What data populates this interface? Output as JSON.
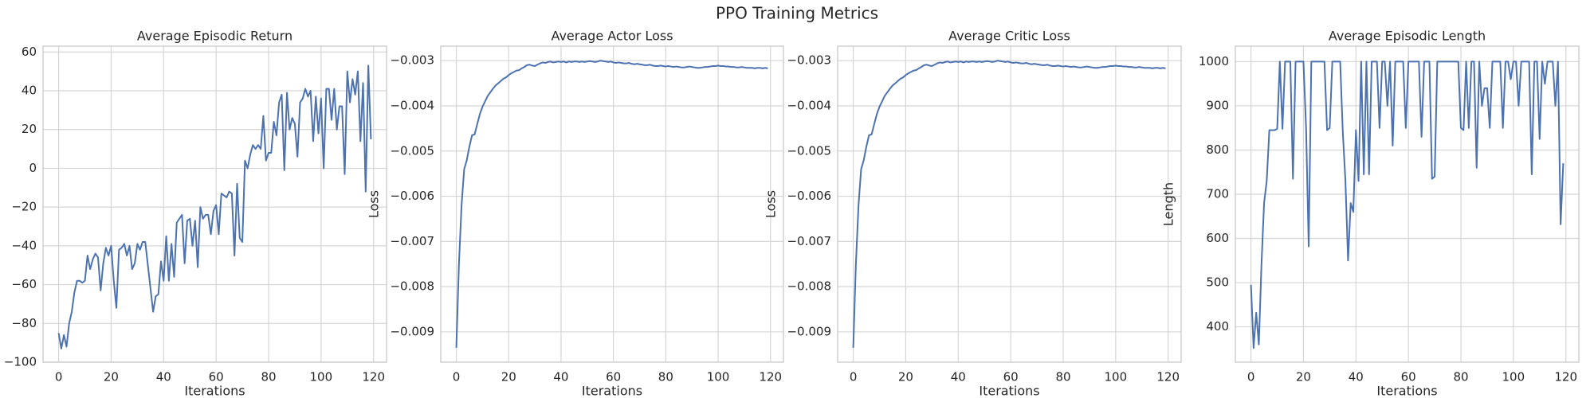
{
  "title": "PPO Training Metrics",
  "chart_data": [
    {
      "type": "line",
      "title": "Average Episodic Return",
      "xlabel": "Iterations",
      "color": "#4c72b0",
      "grid": true,
      "x": [
        0,
        1,
        2,
        3,
        4,
        5,
        6,
        7,
        8,
        9,
        10,
        11,
        12,
        13,
        14,
        15,
        16,
        17,
        18,
        19,
        20,
        21,
        22,
        23,
        24,
        25,
        26,
        27,
        28,
        29,
        30,
        31,
        32,
        33,
        34,
        35,
        36,
        37,
        38,
        39,
        40,
        41,
        42,
        43,
        44,
        45,
        46,
        47,
        48,
        49,
        50,
        51,
        52,
        53,
        54,
        55,
        56,
        57,
        58,
        59,
        60,
        61,
        62,
        63,
        64,
        65,
        66,
        67,
        68,
        69,
        70,
        71,
        72,
        73,
        74,
        75,
        76,
        77,
        78,
        79,
        80,
        81,
        82,
        83,
        84,
        85,
        86,
        87,
        88,
        89,
        90,
        91,
        92,
        93,
        94,
        95,
        96,
        97,
        98,
        99,
        100,
        101,
        102,
        103,
        104,
        105,
        106,
        107,
        108,
        109,
        110,
        111,
        112,
        113,
        114,
        115,
        116,
        117,
        118,
        119
      ],
      "values": [
        -85,
        -93,
        -86,
        -92,
        -80,
        -74,
        -64,
        -58,
        -58,
        -59,
        -58,
        -45,
        -52,
        -47,
        -44,
        -46,
        -63,
        -49,
        -41,
        -45,
        -40,
        -58,
        -72,
        -42,
        -41,
        -39,
        -45,
        -40,
        -52,
        -49,
        -39,
        -42,
        -38,
        -38,
        -50,
        -62,
        -74,
        -66,
        -65,
        -48,
        -58,
        -35,
        -58,
        -39,
        -56,
        -28,
        -26,
        -24,
        -49,
        -27,
        -26,
        -40,
        -27,
        -51,
        -20,
        -26,
        -24,
        -24,
        -34,
        -22,
        -19,
        -34,
        -13,
        -14,
        -15,
        -12,
        -13,
        -45,
        -8,
        -36,
        -38,
        4,
        0,
        7,
        12,
        10,
        12,
        10,
        27,
        4,
        8,
        8,
        24,
        17,
        34,
        38,
        -1,
        39,
        20,
        26,
        23,
        6,
        34,
        36,
        41,
        37,
        40,
        14,
        37,
        18,
        36,
        0,
        41,
        41,
        25,
        41,
        20,
        32,
        32,
        -3,
        50,
        34,
        46,
        38,
        50,
        14,
        44,
        -12,
        53,
        15
      ],
      "xlim": [
        -5.95,
        124.95
      ],
      "xticks": [
        0,
        20,
        40,
        60,
        80,
        100,
        120
      ],
      "ylim": [
        -100,
        63
      ],
      "yticks": [
        {
          "value": -100,
          "label": "−100"
        },
        {
          "value": -80,
          "label": "−80"
        },
        {
          "value": -60,
          "label": "−60"
        },
        {
          "value": -40,
          "label": "−40"
        },
        {
          "value": -20,
          "label": "−20"
        },
        0,
        20,
        40,
        60
      ]
    },
    {
      "type": "line",
      "title": "Average Actor Loss",
      "xlabel": "Iterations",
      "ylabel": "Loss",
      "color": "#4c72b0",
      "grid": true,
      "x": [
        0,
        1,
        2,
        3,
        4,
        5,
        6,
        7,
        8,
        9,
        10,
        11,
        12,
        13,
        14,
        15,
        16,
        17,
        18,
        19,
        20,
        21,
        22,
        23,
        24,
        25,
        26,
        27,
        28,
        29,
        30,
        31,
        32,
        33,
        34,
        35,
        36,
        37,
        38,
        39,
        40,
        41,
        42,
        43,
        44,
        45,
        46,
        47,
        48,
        49,
        50,
        51,
        52,
        53,
        54,
        55,
        56,
        57,
        58,
        59,
        60,
        61,
        62,
        63,
        64,
        65,
        66,
        67,
        68,
        69,
        70,
        71,
        72,
        73,
        74,
        75,
        76,
        77,
        78,
        79,
        80,
        81,
        82,
        83,
        84,
        85,
        86,
        87,
        88,
        89,
        90,
        91,
        92,
        93,
        94,
        95,
        96,
        97,
        98,
        99,
        100,
        101,
        102,
        103,
        104,
        105,
        106,
        107,
        108,
        109,
        110,
        111,
        112,
        113,
        114,
        115,
        116,
        117,
        118,
        119
      ],
      "values": [
        -0.00935,
        -0.0075,
        -0.0062,
        -0.0054,
        -0.0052,
        -0.0049,
        -0.00465,
        -0.00463,
        -0.0044,
        -0.00418,
        -0.00402,
        -0.0039,
        -0.00378,
        -0.0037,
        -0.00362,
        -0.00355,
        -0.0035,
        -0.00345,
        -0.0034,
        -0.00337,
        -0.00332,
        -0.00328,
        -0.00325,
        -0.00322,
        -0.00321,
        -0.00317,
        -0.00314,
        -0.0031,
        -0.00309,
        -0.00311,
        -0.00312,
        -0.00309,
        -0.00306,
        -0.00304,
        -0.00305,
        -0.00303,
        -0.00302,
        -0.00304,
        -0.00303,
        -0.00302,
        -0.00303,
        -0.00302,
        -0.00304,
        -0.00302,
        -0.00303,
        -0.00302,
        -0.00302,
        -0.00303,
        -0.00302,
        -0.00303,
        -0.00302,
        -0.00301,
        -0.00302,
        -0.00303,
        -0.00302,
        -0.003,
        -0.00301,
        -0.00302,
        -0.00303,
        -0.00302,
        -0.00304,
        -0.00305,
        -0.00304,
        -0.00305,
        -0.00306,
        -0.00306,
        -0.00305,
        -0.00307,
        -0.00308,
        -0.00307,
        -0.00308,
        -0.00309,
        -0.0031,
        -0.0031,
        -0.00309,
        -0.00311,
        -0.00312,
        -0.00312,
        -0.00311,
        -0.00312,
        -0.00313,
        -0.00312,
        -0.00313,
        -0.00314,
        -0.00313,
        -0.00314,
        -0.00315,
        -0.00315,
        -0.00314,
        -0.00313,
        -0.00314,
        -0.00315,
        -0.00316,
        -0.00316,
        -0.00315,
        -0.00314,
        -0.00314,
        -0.00313,
        -0.00312,
        -0.00312,
        -0.00311,
        -0.00312,
        -0.00312,
        -0.00313,
        -0.00313,
        -0.00314,
        -0.00314,
        -0.00315,
        -0.00315,
        -0.00314,
        -0.00315,
        -0.00316,
        -0.00316,
        -0.00316,
        -0.00317,
        -0.00316,
        -0.00316,
        -0.00317,
        -0.00316,
        -0.00317
      ],
      "xlim": [
        -5.95,
        124.95
      ],
      "xticks": [
        0,
        20,
        40,
        60,
        80,
        100,
        120
      ],
      "ylim": [
        -0.00967,
        -0.00268
      ],
      "yticks": [
        {
          "value": -0.009,
          "label": "−0.009"
        },
        {
          "value": -0.008,
          "label": "−0.008"
        },
        {
          "value": -0.007,
          "label": "−0.007"
        },
        {
          "value": -0.006,
          "label": "−0.006"
        },
        {
          "value": -0.005,
          "label": "−0.005"
        },
        {
          "value": -0.004,
          "label": "−0.004"
        },
        {
          "value": -0.003,
          "label": "−0.003"
        }
      ]
    },
    {
      "type": "line",
      "title": "Average Critic Loss",
      "xlabel": "Iterations",
      "ylabel": "Loss",
      "color": "#4c72b0",
      "grid": true,
      "x": [
        0,
        1,
        2,
        3,
        4,
        5,
        6,
        7,
        8,
        9,
        10,
        11,
        12,
        13,
        14,
        15,
        16,
        17,
        18,
        19,
        20,
        21,
        22,
        23,
        24,
        25,
        26,
        27,
        28,
        29,
        30,
        31,
        32,
        33,
        34,
        35,
        36,
        37,
        38,
        39,
        40,
        41,
        42,
        43,
        44,
        45,
        46,
        47,
        48,
        49,
        50,
        51,
        52,
        53,
        54,
        55,
        56,
        57,
        58,
        59,
        60,
        61,
        62,
        63,
        64,
        65,
        66,
        67,
        68,
        69,
        70,
        71,
        72,
        73,
        74,
        75,
        76,
        77,
        78,
        79,
        80,
        81,
        82,
        83,
        84,
        85,
        86,
        87,
        88,
        89,
        90,
        91,
        92,
        93,
        94,
        95,
        96,
        97,
        98,
        99,
        100,
        101,
        102,
        103,
        104,
        105,
        106,
        107,
        108,
        109,
        110,
        111,
        112,
        113,
        114,
        115,
        116,
        117,
        118,
        119
      ],
      "values": [
        -0.00935,
        -0.0075,
        -0.0062,
        -0.0054,
        -0.0052,
        -0.0049,
        -0.00465,
        -0.00463,
        -0.0044,
        -0.00418,
        -0.00402,
        -0.0039,
        -0.00378,
        -0.0037,
        -0.00362,
        -0.00355,
        -0.0035,
        -0.00345,
        -0.0034,
        -0.00337,
        -0.00332,
        -0.00328,
        -0.00325,
        -0.00322,
        -0.00321,
        -0.00317,
        -0.00314,
        -0.0031,
        -0.00309,
        -0.00311,
        -0.00312,
        -0.00309,
        -0.00306,
        -0.00304,
        -0.00305,
        -0.00303,
        -0.00302,
        -0.00304,
        -0.00303,
        -0.00302,
        -0.00303,
        -0.00302,
        -0.00304,
        -0.00302,
        -0.00303,
        -0.00302,
        -0.00302,
        -0.00303,
        -0.00302,
        -0.00303,
        -0.00302,
        -0.00301,
        -0.00302,
        -0.00303,
        -0.00302,
        -0.003,
        -0.00301,
        -0.00302,
        -0.00303,
        -0.00302,
        -0.00304,
        -0.00305,
        -0.00304,
        -0.00305,
        -0.00306,
        -0.00306,
        -0.00305,
        -0.00307,
        -0.00308,
        -0.00307,
        -0.00308,
        -0.00309,
        -0.0031,
        -0.0031,
        -0.00309,
        -0.00311,
        -0.00312,
        -0.00312,
        -0.00311,
        -0.00312,
        -0.00313,
        -0.00312,
        -0.00313,
        -0.00314,
        -0.00313,
        -0.00314,
        -0.00315,
        -0.00315,
        -0.00314,
        -0.00313,
        -0.00314,
        -0.00315,
        -0.00316,
        -0.00316,
        -0.00315,
        -0.00314,
        -0.00314,
        -0.00313,
        -0.00312,
        -0.00312,
        -0.00311,
        -0.00312,
        -0.00312,
        -0.00313,
        -0.00313,
        -0.00314,
        -0.00314,
        -0.00315,
        -0.00315,
        -0.00314,
        -0.00315,
        -0.00316,
        -0.00316,
        -0.00316,
        -0.00317,
        -0.00316,
        -0.00316,
        -0.00317,
        -0.00316,
        -0.00317
      ],
      "xlim": [
        -5.95,
        124.95
      ],
      "xticks": [
        0,
        20,
        40,
        60,
        80,
        100,
        120
      ],
      "ylim": [
        -0.00967,
        -0.00268
      ],
      "yticks": [
        {
          "value": -0.009,
          "label": "−0.009"
        },
        {
          "value": -0.008,
          "label": "−0.008"
        },
        {
          "value": -0.007,
          "label": "−0.007"
        },
        {
          "value": -0.006,
          "label": "−0.006"
        },
        {
          "value": -0.005,
          "label": "−0.005"
        },
        {
          "value": -0.004,
          "label": "−0.004"
        },
        {
          "value": -0.003,
          "label": "−0.003"
        }
      ]
    },
    {
      "type": "line",
      "title": "Average Episodic Length",
      "xlabel": "Iterations",
      "ylabel": "Length",
      "color": "#4c72b0",
      "grid": true,
      "x": [
        0,
        1,
        2,
        3,
        4,
        5,
        6,
        7,
        8,
        9,
        10,
        11,
        12,
        13,
        14,
        15,
        16,
        17,
        18,
        19,
        20,
        21,
        22,
        23,
        24,
        25,
        26,
        27,
        28,
        29,
        30,
        31,
        32,
        33,
        34,
        35,
        36,
        37,
        38,
        39,
        40,
        41,
        42,
        43,
        44,
        45,
        46,
        47,
        48,
        49,
        50,
        51,
        52,
        53,
        54,
        55,
        56,
        57,
        58,
        59,
        60,
        61,
        62,
        63,
        64,
        65,
        66,
        67,
        68,
        69,
        70,
        71,
        72,
        73,
        74,
        75,
        76,
        77,
        78,
        79,
        80,
        81,
        82,
        83,
        84,
        85,
        86,
        87,
        88,
        89,
        90,
        91,
        92,
        93,
        94,
        95,
        96,
        97,
        98,
        99,
        100,
        101,
        102,
        103,
        104,
        105,
        106,
        107,
        108,
        109,
        110,
        111,
        112,
        113,
        114,
        115,
        116,
        117,
        118,
        119
      ],
      "values": [
        495,
        352,
        432,
        360,
        540,
        680,
        730,
        845,
        845,
        845,
        848,
        1000,
        848,
        1000,
        1000,
        1000,
        735,
        1000,
        1000,
        1000,
        1000,
        850,
        582,
        1000,
        1000,
        1000,
        1000,
        1000,
        1000,
        845,
        850,
        1000,
        1000,
        1000,
        1000,
        840,
        730,
        550,
        680,
        660,
        845,
        730,
        1000,
        745,
        1000,
        745,
        1000,
        1000,
        1000,
        850,
        1000,
        1000,
        900,
        1000,
        810,
        1000,
        1000,
        1000,
        1000,
        850,
        1000,
        1000,
        1000,
        1000,
        1000,
        830,
        1000,
        1000,
        1000,
        735,
        740,
        1000,
        1000,
        1000,
        1000,
        1000,
        1000,
        1000,
        1000,
        1000,
        850,
        845,
        1000,
        850,
        1000,
        1000,
        760,
        1000,
        900,
        940,
        940,
        850,
        1000,
        1000,
        1000,
        1000,
        850,
        1000,
        1000,
        960,
        1000,
        1000,
        900,
        1000,
        1000,
        1000,
        1000,
        745,
        1000,
        1000,
        825,
        1000,
        950,
        1000,
        1000,
        1000,
        900,
        1000,
        632,
        770
      ],
      "xlim": [
        -5.95,
        124.95
      ],
      "xticks": [
        0,
        20,
        40,
        60,
        80,
        100,
        120
      ],
      "ylim": [
        320,
        1035
      ],
      "yticks": [
        400,
        500,
        600,
        700,
        800,
        900,
        1000
      ]
    }
  ]
}
